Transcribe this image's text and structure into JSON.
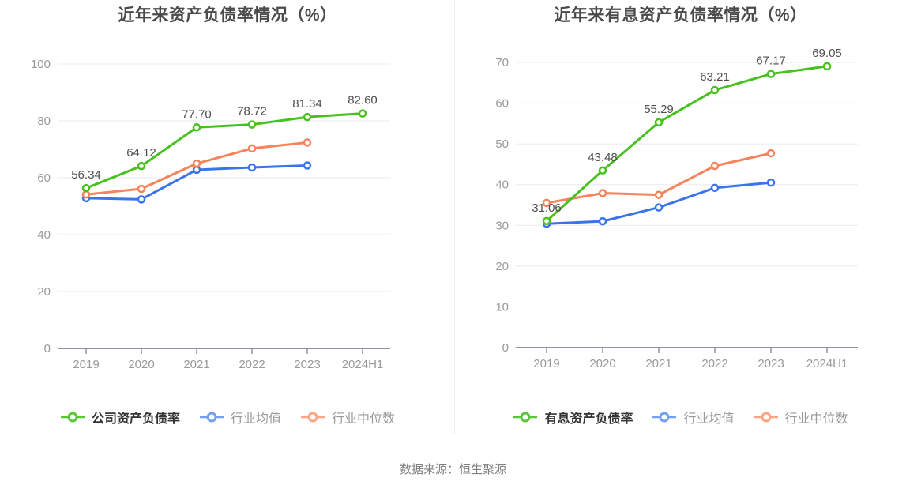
{
  "caption": "数据来源：恒生聚源",
  "colors": {
    "background": "#ffffff",
    "grid": "#e8ebf2",
    "axis": "#8d929c",
    "tick_text": "#999999",
    "value_text": "#4f4f4f",
    "title_text": "#4a4a4a",
    "legend_label_primary": "#333333",
    "legend_label_secondary": "#999999",
    "divider": "#ececef",
    "caption_text": "#808080"
  },
  "chart_data": [
    {
      "type": "line",
      "title": "近年来资产负债率情况（%）",
      "categories": [
        "2019",
        "2020",
        "2021",
        "2022",
        "2023",
        "2024H1"
      ],
      "ylim": [
        0,
        100
      ],
      "yticks": [
        0,
        20,
        40,
        60,
        80,
        100
      ],
      "grid": true,
      "legend_position": "bottom",
      "series": [
        {
          "name": "公司资产负债率",
          "color": "#47c11e",
          "legend_color": "#58c836",
          "values": [
            56.34,
            64.12,
            77.7,
            78.72,
            81.34,
            82.6
          ],
          "labels": [
            "56.34",
            "64.12",
            "77.70",
            "78.72",
            "81.34",
            "82.60"
          ],
          "show_labels": true
        },
        {
          "name": "行业均值",
          "color": "#3a74ea",
          "legend_color": "#74a0f4",
          "values": [
            52.8,
            52.4,
            62.8,
            63.6,
            64.3
          ],
          "show_labels": false
        },
        {
          "name": "行业中位数",
          "color": "#f5845c",
          "legend_color": "#fba584",
          "values": [
            54.1,
            56.1,
            65.0,
            70.3,
            72.4
          ],
          "show_labels": false
        }
      ]
    },
    {
      "type": "line",
      "title": "近年来有息资产负债率情况（%）",
      "categories": [
        "2019",
        "2020",
        "2021",
        "2022",
        "2023",
        "2024H1"
      ],
      "ylim": [
        0,
        70
      ],
      "yticks": [
        0,
        10,
        20,
        30,
        40,
        50,
        60,
        70
      ],
      "grid": true,
      "legend_position": "bottom",
      "series": [
        {
          "name": "有息资产负债率",
          "color": "#47c11e",
          "legend_color": "#58c836",
          "values": [
            31.06,
            43.48,
            55.29,
            63.21,
            67.17,
            69.05
          ],
          "labels": [
            "31.06",
            "43.48",
            "55.29",
            "63.21",
            "67.17",
            "69.05"
          ],
          "show_labels": true
        },
        {
          "name": "行业均值",
          "color": "#3a74ea",
          "legend_color": "#74a0f4",
          "values": [
            30.4,
            31.0,
            34.4,
            39.2,
            40.5
          ],
          "show_labels": false
        },
        {
          "name": "行业中位数",
          "color": "#f5845c",
          "legend_color": "#fba584",
          "values": [
            35.5,
            37.9,
            37.5,
            44.6,
            47.7
          ],
          "show_labels": false
        }
      ]
    }
  ]
}
